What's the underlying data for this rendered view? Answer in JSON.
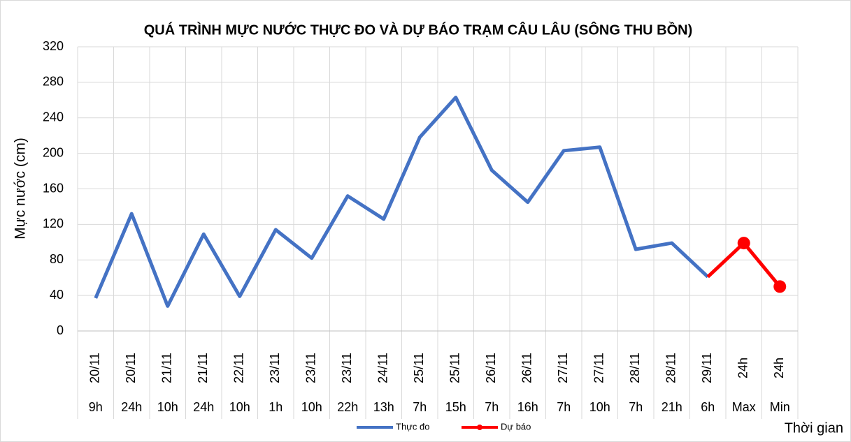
{
  "chart_data": {
    "type": "line",
    "title": "QUÁ TRÌNH MỰC NƯỚC THỰC ĐO VÀ DỰ BÁO TRẠM CÂU LÂU (SÔNG THU BỒN)",
    "y_label": "Mực nước (cm)",
    "x_label": "Thời gian",
    "category_dates": [
      "20/11",
      "20/11",
      "21/11",
      "21/11",
      "22/11",
      "23/11",
      "23/11",
      "23/11",
      "24/11",
      "25/11",
      "25/11",
      "26/11",
      "26/11",
      "27/11",
      "27/11",
      "28/11",
      "28/11",
      "29/11",
      "24h",
      "24h"
    ],
    "categories": [
      "9h",
      "24h",
      "10h",
      "24h",
      "10h",
      "1h",
      "10h",
      "22h",
      "13h",
      "7h",
      "15h",
      "7h",
      "16h",
      "7h",
      "10h",
      "7h",
      "21h",
      "6h",
      "Max",
      "Min"
    ],
    "series": [
      {
        "name": "Thực đo",
        "color": "#4472c4",
        "marker": false,
        "values": [
          37,
          132,
          28,
          109,
          39,
          114,
          82,
          152,
          126,
          218,
          263,
          181,
          145,
          203,
          207,
          92,
          99,
          61,
          null,
          null
        ]
      },
      {
        "name": "Dự báo",
        "color": "#ff0000",
        "marker": true,
        "values": [
          null,
          null,
          null,
          null,
          null,
          null,
          null,
          null,
          null,
          null,
          null,
          null,
          null,
          null,
          null,
          null,
          null,
          61,
          99,
          50
        ]
      }
    ],
    "ylim": [
      0,
      320
    ],
    "yticks": [
      0,
      40,
      80,
      120,
      160,
      200,
      240,
      280,
      320
    ],
    "grid": true,
    "legend": "bottom"
  }
}
